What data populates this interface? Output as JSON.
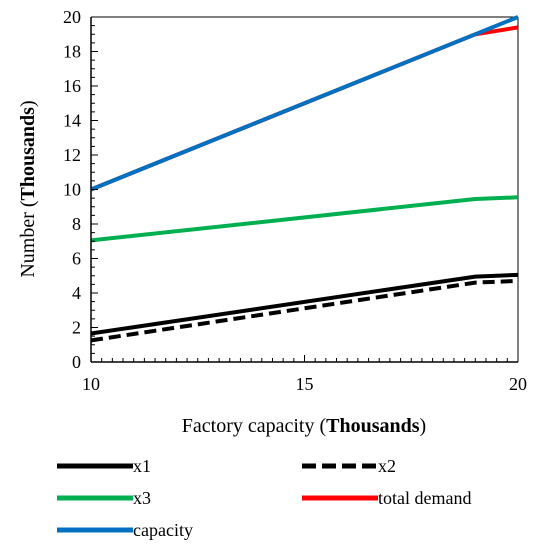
{
  "chart_data": {
    "type": "line",
    "xlabel": {
      "prefix": "Factory capacity (",
      "bold": "Thousands",
      "suffix": ")"
    },
    "ylabel": {
      "prefix": "Number (",
      "bold": "Thousands",
      "suffix": ")"
    },
    "xlim": [
      10,
      20
    ],
    "ylim": [
      0,
      20
    ],
    "x_ticks": [
      10,
      15,
      20
    ],
    "y_ticks": [
      0,
      2,
      4,
      6,
      8,
      10,
      12,
      14,
      16,
      18,
      20
    ],
    "legend_placement": "bottom",
    "series": [
      {
        "name": "x1",
        "color": "#000000",
        "dash": "solid",
        "points": [
          [
            10,
            1.65
          ],
          [
            19,
            4.95
          ],
          [
            20,
            5.05
          ]
        ]
      },
      {
        "name": "x2",
        "color": "#000000",
        "dash": "dashed",
        "points": [
          [
            10,
            1.25
          ],
          [
            19,
            4.6
          ],
          [
            20,
            4.7
          ]
        ]
      },
      {
        "name": "x3",
        "color": "#00b050",
        "dash": "solid",
        "points": [
          [
            10,
            7.05
          ],
          [
            19,
            9.45
          ],
          [
            20,
            9.55
          ]
        ]
      },
      {
        "name": "total demand",
        "color": "#ff0000",
        "dash": "solid",
        "points": [
          [
            10,
            10
          ],
          [
            19,
            19.0
          ],
          [
            20,
            19.4
          ]
        ]
      },
      {
        "name": "capacity",
        "color": "#0070c0",
        "dash": "solid",
        "points": [
          [
            10,
            10
          ],
          [
            20,
            20
          ]
        ]
      }
    ]
  }
}
